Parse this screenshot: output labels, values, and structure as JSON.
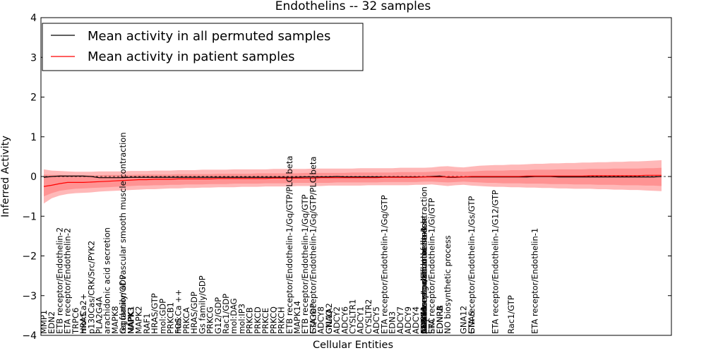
{
  "chart_data": {
    "type": "line",
    "title": "Endothelins -- 32 samples",
    "xlabel": "Cellular Entities",
    "ylabel": "Inferred Activity",
    "ylim": [
      -4,
      4
    ],
    "yticks": [
      "−4",
      "−3",
      "−2",
      "−1",
      "0",
      "1",
      "2",
      "3",
      "4"
    ],
    "grid": false,
    "legend": {
      "placement": "top-left",
      "entries": [
        {
          "label": "Mean activity in all permuted samples",
          "color": "#000000"
        },
        {
          "label": "Mean activity in patient samples",
          "color": "#ff0000"
        }
      ]
    },
    "band_color": "#ff0000",
    "x_count": 79,
    "labeled_entities": [
      {
        "i": 0,
        "label": "MMP1"
      },
      {
        "i": 1,
        "label": "EDN2"
      },
      {
        "i": 2,
        "label": "ETB receptor/Endothelin-2"
      },
      {
        "i": 3,
        "label": "ETA receptor/Endothelin-2"
      },
      {
        "i": 4,
        "label": "TRPC6"
      },
      {
        "i": 5,
        "label": "mol:Ca2+"
      },
      {
        "i": 5,
        "label": "HRAS"
      },
      {
        "i": 6,
        "label": "p130Cas/CRK/Src/PYK2"
      },
      {
        "i": 7,
        "label": "PLA2G4A"
      },
      {
        "i": 8,
        "label": "arachidonic acid secretion"
      },
      {
        "i": 9,
        "label": "MAPK8"
      },
      {
        "i": 10,
        "label": "regulation of vascular smooth muscle contraction"
      },
      {
        "i": 10,
        "label": "Gq family/GDP"
      },
      {
        "i": 11,
        "label": "NAPK3"
      },
      {
        "i": 11,
        "label": "MAPK1"
      },
      {
        "i": 12,
        "label": "MAPK2"
      },
      {
        "i": 13,
        "label": "RAF1"
      },
      {
        "i": 14,
        "label": "HRAS/GTP"
      },
      {
        "i": 15,
        "label": "mol:GDP"
      },
      {
        "i": 16,
        "label": "PRKCB1"
      },
      {
        "i": 17,
        "label": "mol:Ca ++"
      },
      {
        "i": 17,
        "label": "FOS"
      },
      {
        "i": 18,
        "label": "PRKCA"
      },
      {
        "i": 19,
        "label": "HRAS/GDP"
      },
      {
        "i": 20,
        "label": "Gs family/GDP"
      },
      {
        "i": 21,
        "label": "PRKCG"
      },
      {
        "i": 22,
        "label": "G12/GDP"
      },
      {
        "i": 23,
        "label": "Rac1/GDP"
      },
      {
        "i": 24,
        "label": "mol:DAG"
      },
      {
        "i": 25,
        "label": "mol:IP3"
      },
      {
        "i": 26,
        "label": "PRKCB"
      },
      {
        "i": 27,
        "label": "PRKCD"
      },
      {
        "i": 28,
        "label": "PRKCE"
      },
      {
        "i": 29,
        "label": "PRKCQ"
      },
      {
        "i": 30,
        "label": "PRKCH"
      },
      {
        "i": 31,
        "label": "ETB receptor/Endothelin-1/Gq/GTP/PLC beta"
      },
      {
        "i": 32,
        "label": "MAPK14"
      },
      {
        "i": 33,
        "label": "ETB receptor/Endothelin-1/Gq/GTP"
      },
      {
        "i": 34,
        "label": "ETA receptor/Endothelin-1/Gq/GTP/PLC beta"
      },
      {
        "i": 34,
        "label": "Gs/GDP"
      },
      {
        "i": 35,
        "label": "ADCY8"
      },
      {
        "i": 36,
        "label": "GNAQ"
      },
      {
        "i": 36,
        "label": "CYL1A2"
      },
      {
        "i": 37,
        "label": "ADCY2"
      },
      {
        "i": 38,
        "label": "ADCY6"
      },
      {
        "i": 39,
        "label": "CYSLTR1"
      },
      {
        "i": 40,
        "label": "ADCY1"
      },
      {
        "i": 41,
        "label": "CYSLTR2"
      },
      {
        "i": 42,
        "label": "ADCY5"
      },
      {
        "i": 43,
        "label": "ETA receptor/Endothelin-1/Gq/GTP"
      },
      {
        "i": 44,
        "label": "EDN3"
      },
      {
        "i": 45,
        "label": "ADCY7"
      },
      {
        "i": 46,
        "label": "ADCY9"
      },
      {
        "i": 47,
        "label": "ADCY4"
      },
      {
        "i": 48,
        "label": "ADCY3"
      },
      {
        "i": 48,
        "label": "CDC71"
      },
      {
        "i": 48,
        "label": "vascular smooth muscle contraction"
      },
      {
        "i": 48,
        "label": "positive regulation of muscle"
      },
      {
        "i": 48,
        "label": "response to oxidative stress"
      },
      {
        "i": 48,
        "label": "ETB receptor/Endothelin-3"
      },
      {
        "i": 48,
        "label": "ETB receptor/Endothelin-1"
      },
      {
        "i": 48,
        "label": "EDN1"
      },
      {
        "i": 49,
        "label": "ETA receptor/Endothelin-1/Gi/GTP"
      },
      {
        "i": 49,
        "label": "SRC"
      },
      {
        "i": 50,
        "label": "EDNRB"
      },
      {
        "i": 50,
        "label": "EDNRA"
      },
      {
        "i": 51,
        "label": "NO biosynthetic process"
      },
      {
        "i": 53,
        "label": "GNA12"
      },
      {
        "i": 54,
        "label": "ETA receptor/Endothelin-1/Gs/GTP"
      },
      {
        "i": 54,
        "label": "GNAS"
      },
      {
        "i": 57,
        "label": "ETA receptor/Endothelin-1/G12/GTP"
      },
      {
        "i": 59,
        "label": "Rac1/GTP"
      },
      {
        "i": 62,
        "label": "ETA receptor/Endothelin-1"
      }
    ],
    "series": [
      {
        "name": "Mean activity in all permuted samples",
        "color": "#000000",
        "values": [
          -0.02,
          0.0,
          0.01,
          0.01,
          0.01,
          0.01,
          0.0,
          -0.03,
          -0.03,
          -0.03,
          -0.03,
          -0.02,
          -0.02,
          -0.02,
          -0.02,
          -0.02,
          -0.02,
          -0.02,
          -0.02,
          -0.02,
          -0.02,
          -0.02,
          -0.02,
          -0.02,
          -0.02,
          -0.02,
          -0.02,
          -0.02,
          -0.02,
          -0.02,
          -0.02,
          -0.02,
          -0.02,
          -0.01,
          -0.01,
          -0.01,
          -0.01,
          0.0,
          -0.01,
          -0.01,
          -0.01,
          -0.01,
          -0.01,
          -0.01,
          -0.01,
          -0.01,
          -0.01,
          -0.01,
          -0.01,
          0.0,
          0.01,
          -0.02,
          -0.02,
          -0.01,
          -0.01,
          -0.01,
          -0.01,
          -0.01,
          -0.01,
          -0.01,
          -0.01,
          -0.01,
          0.0,
          0.0,
          0.0,
          -0.01,
          -0.01,
          -0.01,
          -0.01,
          -0.01,
          -0.01,
          -0.01,
          -0.01,
          -0.01,
          -0.01,
          -0.01,
          -0.01,
          -0.01,
          0.0
        ]
      },
      {
        "name": "Mean activity in patient samples",
        "color": "#ff0000",
        "values": [
          -0.25,
          -0.22,
          -0.18,
          -0.15,
          -0.15,
          -0.15,
          -0.14,
          -0.13,
          -0.12,
          -0.11,
          -0.1,
          -0.09,
          -0.08,
          -0.08,
          -0.07,
          -0.07,
          -0.07,
          -0.06,
          -0.06,
          -0.06,
          -0.06,
          -0.06,
          -0.05,
          -0.05,
          -0.05,
          -0.05,
          -0.05,
          -0.05,
          -0.05,
          -0.04,
          -0.04,
          -0.04,
          -0.04,
          -0.04,
          -0.04,
          -0.03,
          -0.03,
          -0.03,
          -0.03,
          -0.03,
          -0.03,
          -0.03,
          -0.03,
          -0.02,
          -0.02,
          -0.02,
          -0.02,
          -0.02,
          -0.01,
          -0.01,
          -0.01,
          -0.01,
          -0.01,
          -0.01,
          0.0,
          0.0,
          0.0,
          0.0,
          0.0,
          0.0,
          0.0,
          0.01,
          0.01,
          0.01,
          0.01,
          0.01,
          0.01,
          0.01,
          0.01,
          0.02,
          0.02,
          0.02,
          0.02,
          0.02,
          0.02,
          0.02,
          0.03,
          0.03,
          0.03
        ]
      }
    ],
    "band_outer": {
      "upper": [
        0.18,
        0.15,
        0.14,
        0.13,
        0.12,
        0.12,
        0.12,
        0.13,
        0.13,
        0.13,
        0.13,
        0.14,
        0.14,
        0.14,
        0.15,
        0.15,
        0.15,
        0.16,
        0.16,
        0.16,
        0.17,
        0.17,
        0.17,
        0.17,
        0.18,
        0.18,
        0.18,
        0.18,
        0.18,
        0.19,
        0.19,
        0.19,
        0.19,
        0.19,
        0.2,
        0.2,
        0.2,
        0.2,
        0.2,
        0.2,
        0.21,
        0.21,
        0.21,
        0.21,
        0.21,
        0.22,
        0.22,
        0.22,
        0.22,
        0.23,
        0.25,
        0.26,
        0.24,
        0.23,
        0.25,
        0.27,
        0.28,
        0.29,
        0.29,
        0.3,
        0.3,
        0.31,
        0.32,
        0.32,
        0.33,
        0.33,
        0.34,
        0.34,
        0.35,
        0.35,
        0.36,
        0.36,
        0.37,
        0.37,
        0.38,
        0.38,
        0.39,
        0.4,
        0.41
      ],
      "lower": [
        -0.68,
        -0.55,
        -0.48,
        -0.44,
        -0.42,
        -0.41,
        -0.4,
        -0.38,
        -0.37,
        -0.36,
        -0.35,
        -0.34,
        -0.33,
        -0.32,
        -0.32,
        -0.31,
        -0.3,
        -0.3,
        -0.29,
        -0.29,
        -0.28,
        -0.28,
        -0.27,
        -0.27,
        -0.27,
        -0.26,
        -0.26,
        -0.26,
        -0.25,
        -0.25,
        -0.25,
        -0.25,
        -0.24,
        -0.24,
        -0.24,
        -0.24,
        -0.23,
        -0.23,
        -0.23,
        -0.23,
        -0.23,
        -0.22,
        -0.22,
        -0.22,
        -0.22,
        -0.22,
        -0.22,
        -0.21,
        -0.21,
        -0.2,
        -0.22,
        -0.24,
        -0.22,
        -0.21,
        -0.23,
        -0.24,
        -0.25,
        -0.26,
        -0.26,
        -0.27,
        -0.27,
        -0.28,
        -0.28,
        -0.29,
        -0.29,
        -0.3,
        -0.3,
        -0.31,
        -0.31,
        -0.31,
        -0.32,
        -0.32,
        -0.33,
        -0.33,
        -0.34,
        -0.34,
        -0.35,
        -0.36,
        -0.37
      ]
    },
    "band_inner": {
      "upper": [
        0.05,
        0.04,
        0.04,
        0.03,
        0.03,
        0.03,
        0.03,
        0.03,
        0.04,
        0.04,
        0.04,
        0.04,
        0.05,
        0.05,
        0.05,
        0.05,
        0.05,
        0.06,
        0.06,
        0.06,
        0.06,
        0.06,
        0.07,
        0.07,
        0.07,
        0.07,
        0.07,
        0.08,
        0.08,
        0.08,
        0.08,
        0.08,
        0.08,
        0.09,
        0.09,
        0.09,
        0.09,
        0.09,
        0.09,
        0.1,
        0.1,
        0.1,
        0.1,
        0.1,
        0.1,
        0.11,
        0.11,
        0.11,
        0.11,
        0.12,
        0.13,
        0.14,
        0.13,
        0.12,
        0.13,
        0.14,
        0.15,
        0.15,
        0.15,
        0.16,
        0.16,
        0.16,
        0.17,
        0.17,
        0.17,
        0.18,
        0.18,
        0.18,
        0.18,
        0.19,
        0.19,
        0.19,
        0.2,
        0.2,
        0.2,
        0.2,
        0.21,
        0.21,
        0.22
      ],
      "lower": [
        -0.5,
        -0.42,
        -0.36,
        -0.33,
        -0.31,
        -0.3,
        -0.29,
        -0.28,
        -0.27,
        -0.26,
        -0.25,
        -0.24,
        -0.23,
        -0.23,
        -0.22,
        -0.22,
        -0.21,
        -0.21,
        -0.2,
        -0.2,
        -0.2,
        -0.19,
        -0.19,
        -0.19,
        -0.18,
        -0.18,
        -0.18,
        -0.18,
        -0.17,
        -0.17,
        -0.17,
        -0.17,
        -0.16,
        -0.16,
        -0.16,
        -0.16,
        -0.16,
        -0.15,
        -0.15,
        -0.15,
        -0.15,
        -0.15,
        -0.15,
        -0.14,
        -0.14,
        -0.14,
        -0.14,
        -0.14,
        -0.13,
        -0.13,
        -0.14,
        -0.15,
        -0.14,
        -0.13,
        -0.14,
        -0.15,
        -0.16,
        -0.16,
        -0.17,
        -0.17,
        -0.17,
        -0.18,
        -0.18,
        -0.18,
        -0.19,
        -0.19,
        -0.19,
        -0.2,
        -0.2,
        -0.2,
        -0.21,
        -0.21,
        -0.21,
        -0.22,
        -0.22,
        -0.22,
        -0.23,
        -0.23,
        -0.24
      ]
    }
  }
}
